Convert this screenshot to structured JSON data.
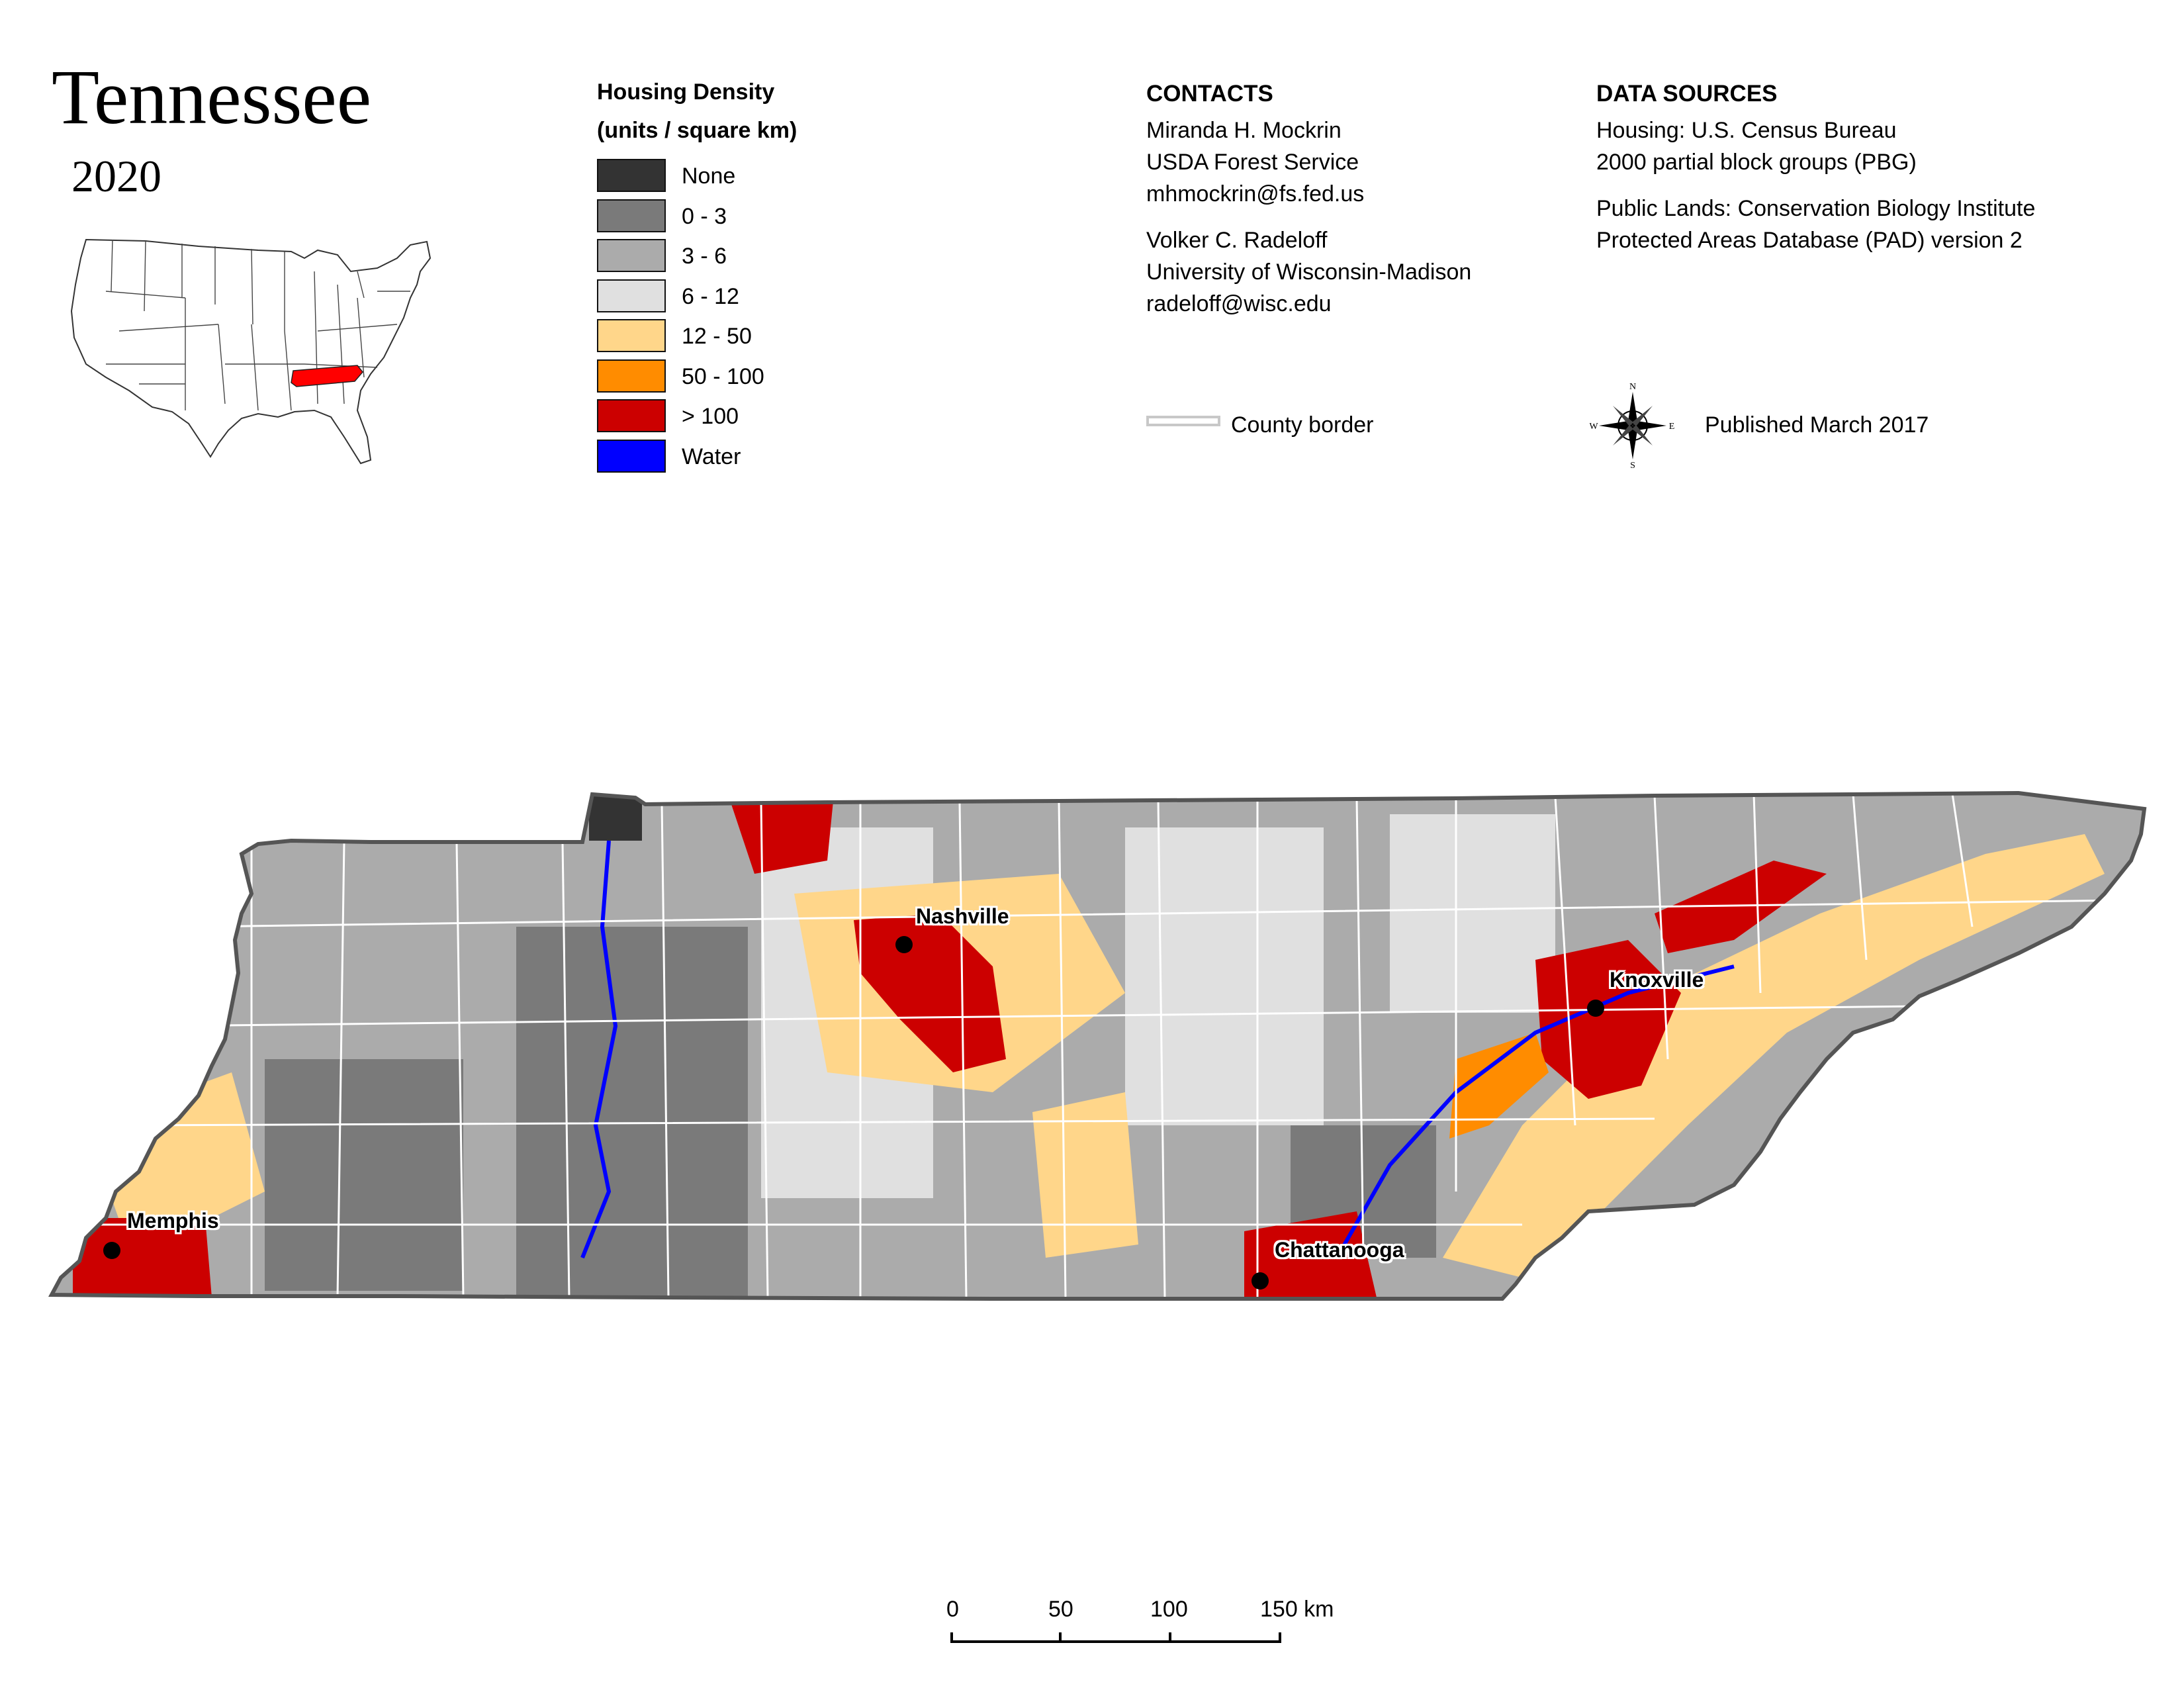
{
  "title": "Tennessee",
  "year": "2020",
  "legend": {
    "title_line1": "Housing Density",
    "title_line2": "(units / square km)",
    "items": [
      {
        "label": "None",
        "color": "#333333"
      },
      {
        "label": "0 - 3",
        "color": "#7a7a7a"
      },
      {
        "label": "3 - 6",
        "color": "#ababab"
      },
      {
        "label": "6 - 12",
        "color": "#e0e0e0"
      },
      {
        "label": "12 - 50",
        "color": "#ffd68a"
      },
      {
        "label": "50 - 100",
        "color": "#ff8c00"
      },
      {
        "label": "> 100",
        "color": "#cc0000"
      },
      {
        "label": "Water",
        "color": "#0000ff"
      }
    ]
  },
  "contacts": {
    "header": "CONTACTS",
    "person1": {
      "name": "Miranda H. Mockrin",
      "org": "USDA Forest Service",
      "email": "mhmockrin@fs.fed.us"
    },
    "person2": {
      "name": "Volker C. Radeloff",
      "org": "University of Wisconsin-Madison",
      "email": "radeloff@wisc.edu"
    },
    "county_border_label": "County border"
  },
  "data_sources": {
    "header": "DATA SOURCES",
    "housing_line1": "Housing: U.S. Census Bureau",
    "housing_line2": "2000 partial block groups (PBG)",
    "lands_line1": "Public Lands: Conservation Biology Institute",
    "lands_line2": "Protected Areas Database (PAD) version 2",
    "published": "Published March 2017"
  },
  "compass": {
    "n": "N",
    "s": "S",
    "e": "E",
    "w": "W"
  },
  "cities": [
    {
      "name": "Nashville"
    },
    {
      "name": "Knoxville"
    },
    {
      "name": "Memphis"
    },
    {
      "name": "Chattanooga"
    }
  ],
  "scale_bar": {
    "labels": [
      "0",
      "50",
      "100",
      "150 km"
    ]
  },
  "colors": {
    "state_highlight": "#ff0000",
    "county_border": "#ffffff",
    "state_outline": "#555555"
  }
}
